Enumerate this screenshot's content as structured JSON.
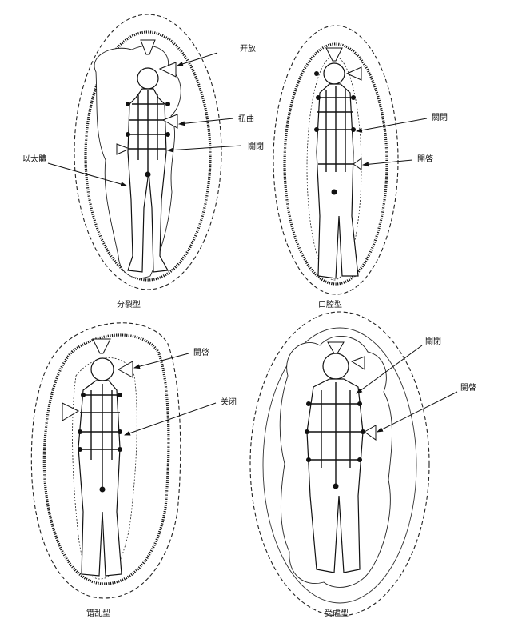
{
  "panels": [
    {
      "caption": "分裂型",
      "labels": [
        "开放",
        "扭曲",
        "關閉",
        "以太體"
      ]
    },
    {
      "caption": "口腔型",
      "labels": [
        "關閉",
        "開啓"
      ]
    },
    {
      "caption": "错乱型",
      "labels": [
        "開啓",
        "关闭"
      ]
    },
    {
      "caption": "受虐型",
      "labels": [
        "關閉",
        "開啓"
      ]
    }
  ]
}
